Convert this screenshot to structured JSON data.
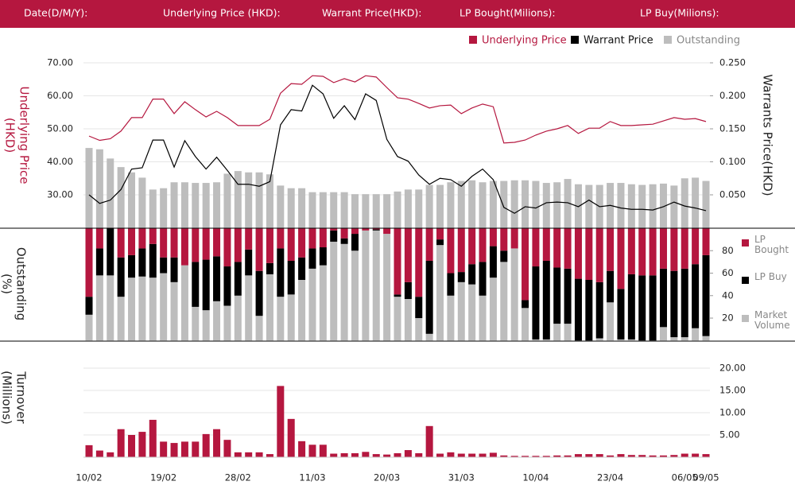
{
  "header": {
    "labels": [
      "Date(D/M/Y):",
      "Underlying Price (HKD):",
      "Warrant  Price(HKD):",
      "LP Bought(Milions):",
      "LP Buy(Milions):"
    ]
  },
  "chart_data": [
    {
      "type": "combo",
      "y_label": [
        "Underlying Price",
        "(HKD)"
      ],
      "y2_label": "Warrants  Price(HKD)",
      "ylim": [
        20,
        70
      ],
      "yticks": [
        {
          "value": 30,
          "label": "30.00"
        },
        {
          "value": 40,
          "label": "40.00"
        },
        {
          "value": 50,
          "label": "50.00"
        },
        {
          "value": 60,
          "label": "60.00"
        },
        {
          "value": 70,
          "label": "70.00"
        }
      ],
      "y2lim": [
        0,
        0.25
      ],
      "y2ticks": [
        {
          "value": 0.05,
          "label": "0.050"
        },
        {
          "value": 0.1,
          "label": "0.100"
        },
        {
          "value": 0.15,
          "label": "0.150"
        },
        {
          "value": 0.2,
          "label": "0.200"
        },
        {
          "value": 0.25,
          "label": "0.250"
        }
      ],
      "grid": true,
      "series": [
        {
          "name": "Outstanding",
          "color": "#bdbdbd",
          "style": "bar",
          "axis": "y2",
          "values": [
            0.121,
            0.119,
            0.105,
            0.092,
            0.084,
            0.076,
            0.058,
            0.06,
            0.069,
            0.069,
            0.068,
            0.068,
            0.069,
            0.082,
            0.086,
            0.084,
            0.084,
            0.081,
            0.064,
            0.06,
            0.06,
            0.054,
            0.054,
            0.054,
            0.054,
            0.051,
            0.051,
            0.051,
            0.051,
            0.055,
            0.058,
            0.058,
            0.065,
            0.065,
            0.069,
            0.071,
            0.072,
            0.069,
            0.071,
            0.071,
            0.072,
            0.072,
            0.071,
            0.068,
            0.069,
            0.074,
            0.066,
            0.065,
            0.065,
            0.068,
            0.068,
            0.066,
            0.065,
            0.066,
            0.067,
            0.064,
            0.075,
            0.076,
            0.071
          ]
        },
        {
          "name": "Underlying Price",
          "color": "#b5173f",
          "style": "line",
          "axis": "y",
          "values": [
            47.8,
            46.5,
            47,
            49.3,
            53.4,
            53.4,
            59,
            59,
            54.6,
            58.2,
            55.8,
            53.6,
            55.3,
            53.4,
            51,
            51,
            51,
            52.9,
            60.8,
            63.7,
            63.5,
            66.1,
            65.9,
            64,
            65.2,
            64.2,
            66.1,
            65.7,
            62.5,
            59.4,
            59,
            57.7,
            56.3,
            57,
            57.2,
            54.6,
            56.3,
            57.5,
            56.7,
            45.7,
            45.9,
            46.6,
            48.1,
            49.3,
            50,
            51,
            48.6,
            50.2,
            50.2,
            52.2,
            51,
            51,
            51.2,
            51.4,
            52.4,
            53.4,
            52.9,
            53.1,
            52.2
          ]
        },
        {
          "name": "Warrant  Price",
          "color": "#000000",
          "style": "line",
          "axis": "y2",
          "values": [
            0.05,
            0.037,
            0.042,
            0.058,
            0.089,
            0.091,
            0.133,
            0.133,
            0.092,
            0.132,
            0.108,
            0.089,
            0.107,
            0.087,
            0.066,
            0.066,
            0.063,
            0.07,
            0.156,
            0.179,
            0.177,
            0.216,
            0.203,
            0.166,
            0.185,
            0.164,
            0.203,
            0.193,
            0.134,
            0.108,
            0.101,
            0.08,
            0.066,
            0.075,
            0.073,
            0.063,
            0.078,
            0.089,
            0.073,
            0.031,
            0.022,
            0.032,
            0.03,
            0.038,
            0.039,
            0.038,
            0.032,
            0.042,
            0.032,
            0.034,
            0.03,
            0.028,
            0.028,
            0.027,
            0.032,
            0.039,
            0.033,
            0.03,
            0.026
          ]
        }
      ]
    },
    {
      "type": "stacked_bar",
      "y_label": [
        "Outstanding",
        "(%)"
      ],
      "ylim": [
        0,
        100
      ],
      "yticks": [
        20,
        40,
        60,
        80
      ],
      "grid": false,
      "series": [
        {
          "name": "Market Volume",
          "color": "#bdbdbd",
          "values": [
            23,
            58,
            58,
            39,
            56,
            57,
            56,
            60,
            52,
            67,
            30,
            27,
            35,
            31,
            40,
            58,
            22,
            59,
            39,
            41,
            54,
            64,
            67,
            88,
            86,
            80,
            98,
            98,
            95,
            39,
            37,
            20,
            6,
            85,
            40,
            52,
            50,
            40,
            56,
            70,
            82,
            29,
            1,
            1,
            15,
            15,
            0,
            0,
            2,
            34,
            1,
            1,
            0,
            0,
            12,
            3,
            3,
            11,
            4
          ]
        },
        {
          "name": "LP Buy",
          "color": "#000000",
          "values": [
            16,
            24,
            42,
            35,
            20,
            25,
            30,
            14,
            22,
            0,
            40,
            45,
            40,
            35,
            30,
            23,
            40,
            10,
            43,
            30,
            20,
            18,
            16,
            10,
            5,
            15,
            0,
            1,
            0,
            2,
            15,
            19,
            65,
            5,
            20,
            9,
            18,
            30,
            28,
            10,
            0,
            7,
            65,
            70,
            50,
            49,
            55,
            54,
            50,
            28,
            45,
            58,
            58,
            58,
            52,
            59,
            61,
            57,
            72
          ]
        },
        {
          "name": "LP Bought",
          "color": "#b5173f",
          "values": [
            61,
            18,
            0,
            26,
            24,
            18,
            14,
            26,
            26,
            33,
            30,
            28,
            25,
            34,
            30,
            19,
            38,
            31,
            18,
            29,
            26,
            18,
            17,
            2,
            9,
            5,
            2,
            1,
            5,
            59,
            48,
            61,
            29,
            10,
            40,
            39,
            32,
            30,
            16,
            20,
            18,
            64,
            34,
            29,
            35,
            36,
            45,
            46,
            48,
            38,
            54,
            41,
            42,
            42,
            36,
            38,
            36,
            32,
            24
          ]
        }
      ]
    },
    {
      "type": "bar",
      "y_label": [
        "Turnover",
        "(Millions)"
      ],
      "categories": [
        "10/02",
        null,
        null,
        null,
        null,
        null,
        null,
        "19/02",
        null,
        null,
        null,
        null,
        null,
        null,
        "28/02",
        null,
        null,
        null,
        null,
        null,
        null,
        "11/03",
        null,
        null,
        null,
        null,
        null,
        null,
        "20/03",
        null,
        null,
        null,
        null,
        null,
        null,
        "31/03",
        null,
        null,
        null,
        null,
        null,
        null,
        "10/04",
        null,
        null,
        null,
        null,
        null,
        null,
        "23/04",
        null,
        null,
        null,
        null,
        null,
        null,
        "06/05",
        null,
        "09/05"
      ],
      "ylim": [
        0,
        20
      ],
      "yticks": [
        {
          "value": 5,
          "label": "5.00"
        },
        {
          "value": 10,
          "label": "10.00"
        },
        {
          "value": 15,
          "label": "15.00"
        },
        {
          "value": 20,
          "label": "20.00"
        }
      ],
      "grid": true,
      "color": "#b5173f",
      "values": [
        2.7,
        1.5,
        1.1,
        6.3,
        5,
        5.7,
        8.4,
        3.5,
        3.2,
        3.5,
        3.5,
        5.2,
        6.3,
        3.9,
        1.1,
        1.1,
        1.1,
        0.7,
        16,
        8.6,
        3.6,
        2.8,
        2.8,
        0.8,
        0.9,
        0.9,
        1.2,
        0.7,
        0.6,
        0.9,
        1.6,
        0.9,
        7,
        0.8,
        1.1,
        0.8,
        0.8,
        0.8,
        1,
        0.4,
        0.3,
        0.3,
        0.3,
        0.3,
        0.4,
        0.4,
        0.7,
        0.7,
        0.7,
        0.4,
        0.7,
        0.5,
        0.5,
        0.4,
        0.4,
        0.5,
        0.8,
        0.8,
        0.7
      ]
    }
  ]
}
